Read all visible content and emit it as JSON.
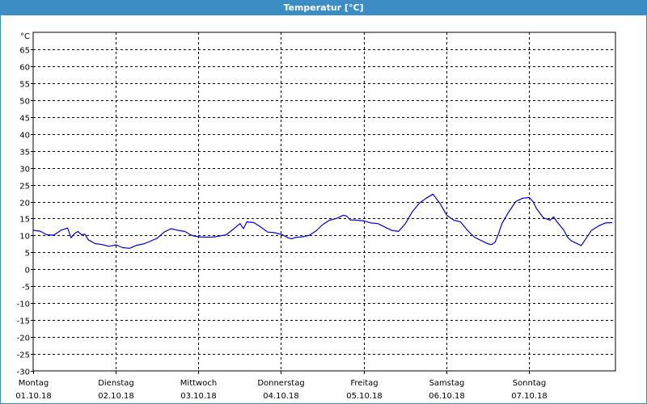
{
  "window": {
    "title": "Temperatur [°C]",
    "accent_color": "#3c8dc4"
  },
  "chart_data": {
    "type": "line",
    "title": "Temperatur [°C]",
    "ylabel": "°C",
    "xlabel": "",
    "ylim": [
      -30,
      70
    ],
    "yticks": [
      -30,
      -25,
      -20,
      -15,
      -10,
      -5,
      0,
      5,
      10,
      15,
      20,
      25,
      30,
      35,
      40,
      45,
      50,
      55,
      60,
      65
    ],
    "y_unit_label": "°C",
    "grid": true,
    "x_unit": "hours since Montag 01.10.18 00:00",
    "xlim": [
      0,
      168
    ],
    "x_ticks": [
      {
        "x": 0,
        "day": "Montag",
        "date": "01.10.18"
      },
      {
        "x": 24,
        "day": "Dienstag",
        "date": "02.10.18"
      },
      {
        "x": 48,
        "day": "Mittwoch",
        "date": "03.10.18"
      },
      {
        "x": 72,
        "day": "Donnerstag",
        "date": "04.10.18"
      },
      {
        "x": 96,
        "day": "Freitag",
        "date": "05.10.18"
      },
      {
        "x": 120,
        "day": "Samstag",
        "date": "06.10.18"
      },
      {
        "x": 144,
        "day": "Sonntag",
        "date": "07.10.18"
      }
    ],
    "series": [
      {
        "name": "",
        "color": "#0000cc",
        "points": [
          [
            0,
            11.5
          ],
          [
            2,
            11.3
          ],
          [
            4,
            10.2
          ],
          [
            6,
            10.1
          ],
          [
            8,
            11.5
          ],
          [
            10,
            12.2
          ],
          [
            11,
            9.3
          ],
          [
            12,
            10.5
          ],
          [
            13,
            11.2
          ],
          [
            14,
            10.2
          ],
          [
            15,
            10.4
          ],
          [
            16,
            8.7
          ],
          [
            18,
            7.6
          ],
          [
            20,
            7.3
          ],
          [
            22,
            6.8
          ],
          [
            24,
            7.2
          ],
          [
            26,
            6.4
          ],
          [
            28,
            6.2
          ],
          [
            30,
            7.1
          ],
          [
            32,
            7.5
          ],
          [
            34,
            8.3
          ],
          [
            36,
            9.2
          ],
          [
            38,
            11.0
          ],
          [
            40,
            12.0
          ],
          [
            42,
            11.5
          ],
          [
            44,
            11.2
          ],
          [
            46,
            10.0
          ],
          [
            48,
            9.6
          ],
          [
            50,
            9.5
          ],
          [
            52,
            9.5
          ],
          [
            54,
            9.8
          ],
          [
            56,
            10.2
          ],
          [
            58,
            11.8
          ],
          [
            60,
            13.5
          ],
          [
            61,
            12.0
          ],
          [
            62,
            14.0
          ],
          [
            64,
            13.8
          ],
          [
            66,
            12.5
          ],
          [
            68,
            11.0
          ],
          [
            70,
            10.8
          ],
          [
            72,
            10.3
          ],
          [
            74,
            9.3
          ],
          [
            75,
            9.0
          ],
          [
            76,
            9.4
          ],
          [
            78,
            9.6
          ],
          [
            80,
            10.0
          ],
          [
            82,
            11.3
          ],
          [
            84,
            13.2
          ],
          [
            86,
            14.5
          ],
          [
            88,
            15.0
          ],
          [
            90,
            16.0
          ],
          [
            91,
            15.7
          ],
          [
            92,
            14.6
          ],
          [
            94,
            14.5
          ],
          [
            96,
            14.3
          ],
          [
            98,
            13.7
          ],
          [
            100,
            13.5
          ],
          [
            102,
            12.5
          ],
          [
            104,
            11.5
          ],
          [
            106,
            11.2
          ],
          [
            108,
            13.5
          ],
          [
            110,
            17.0
          ],
          [
            112,
            19.5
          ],
          [
            114,
            21.0
          ],
          [
            116,
            22.2
          ],
          [
            118,
            19.5
          ],
          [
            120,
            16.0
          ],
          [
            122,
            14.5
          ],
          [
            124,
            14.0
          ],
          [
            126,
            11.5
          ],
          [
            128,
            9.5
          ],
          [
            130,
            8.5
          ],
          [
            132,
            7.5
          ],
          [
            133,
            7.3
          ],
          [
            134,
            8.0
          ],
          [
            135,
            10.5
          ],
          [
            136,
            13.5
          ],
          [
            138,
            17.0
          ],
          [
            140,
            20.0
          ],
          [
            142,
            21.0
          ],
          [
            144,
            21.2
          ],
          [
            145,
            20.0
          ],
          [
            146,
            18.0
          ],
          [
            148,
            15.2
          ],
          [
            150,
            14.5
          ],
          [
            151,
            15.5
          ],
          [
            152,
            14.0
          ],
          [
            154,
            11.5
          ],
          [
            155,
            9.5
          ],
          [
            156,
            8.5
          ],
          [
            158,
            7.5
          ],
          [
            159,
            7.0
          ],
          [
            160,
            8.5
          ],
          [
            162,
            11.5
          ],
          [
            164,
            12.8
          ],
          [
            166,
            13.7
          ],
          [
            168,
            13.8
          ]
        ]
      }
    ]
  }
}
